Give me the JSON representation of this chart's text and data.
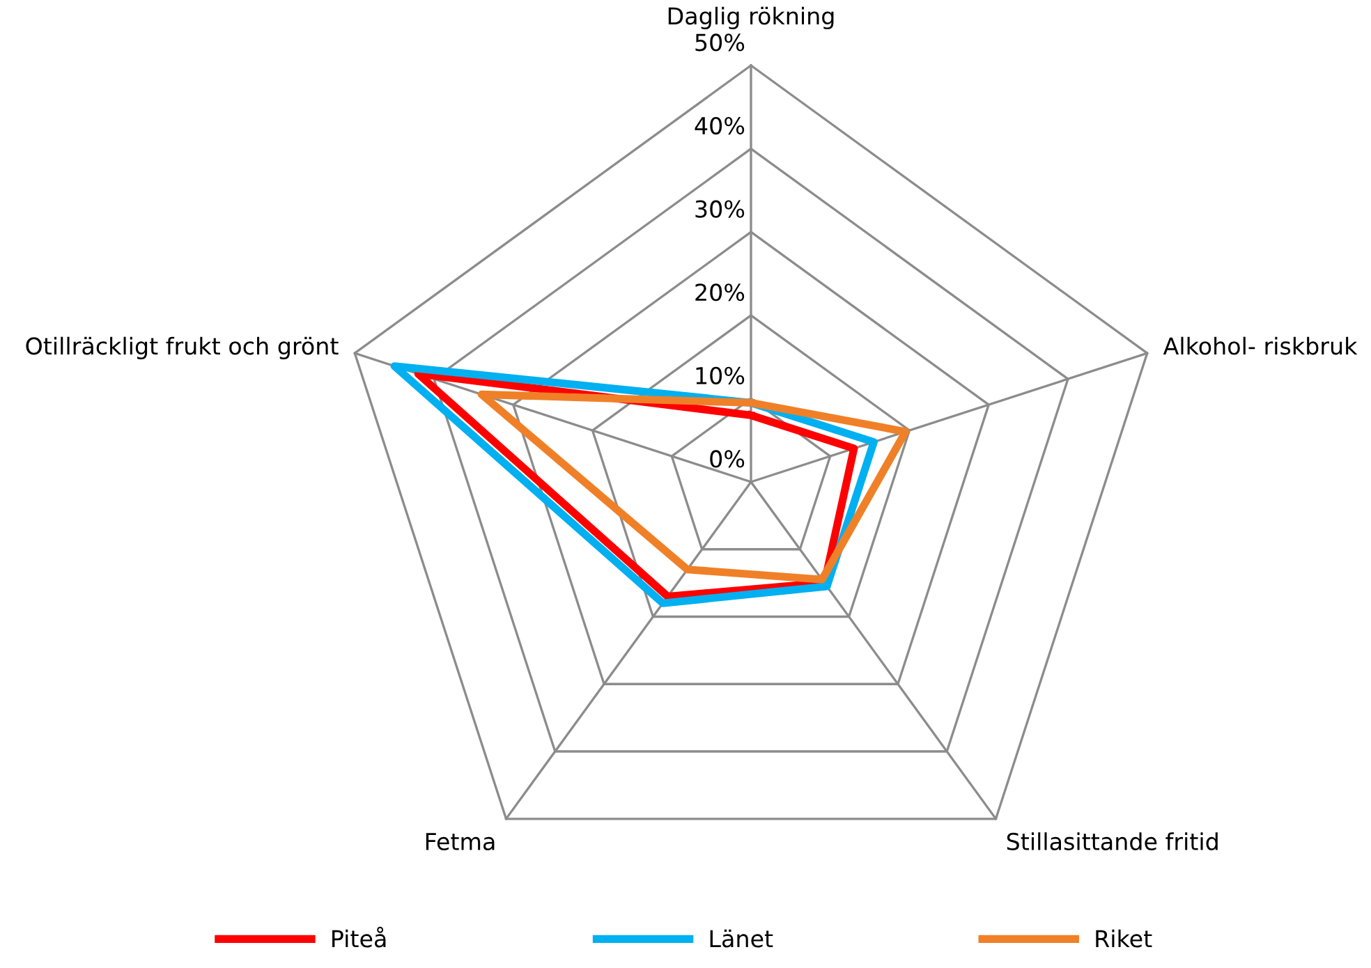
{
  "chart_data": {
    "type": "radar",
    "categories": [
      "Daglig rökning",
      "Alkohol- riskbruk",
      "Stillasittande fritid",
      "Fetma",
      "Otillräckligt frukt och grönt"
    ],
    "series": [
      {
        "name": "Piteå",
        "color": "#ff0000",
        "values": [
          8,
          13,
          15,
          17,
          42
        ]
      },
      {
        "name": "Länet",
        "color": "#00b0f0",
        "values": [
          9.5,
          15.5,
          15.5,
          18,
          45
        ]
      },
      {
        "name": "Riket",
        "color": "#f08028",
        "values": [
          9.5,
          19.5,
          14.5,
          13,
          34
        ]
      }
    ],
    "ylim": [
      0,
      50
    ],
    "yticks": [
      {
        "value": 0,
        "label": "0%"
      },
      {
        "value": 10,
        "label": "10%"
      },
      {
        "value": 20,
        "label": "20%"
      },
      {
        "value": 30,
        "label": "30%"
      },
      {
        "value": 40,
        "label": "40%"
      },
      {
        "value": 50,
        "label": "50%"
      }
    ],
    "grid": true,
    "legend": "bottom",
    "marker": "none",
    "line_style": "solid"
  }
}
